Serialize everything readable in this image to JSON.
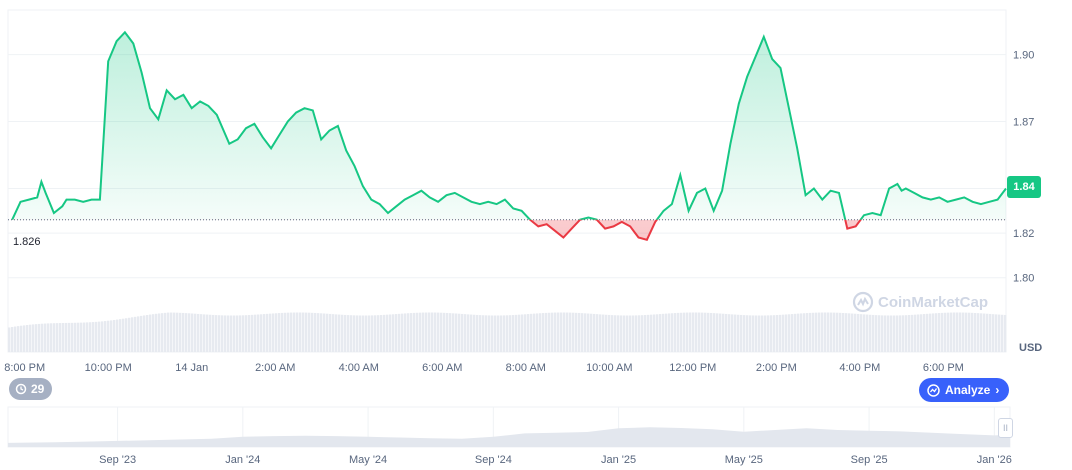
{
  "chart_data": [
    {
      "type": "area",
      "title": "",
      "xlabel": "",
      "ylabel": "USD",
      "ylim": [
        1.79,
        1.92
      ],
      "y_ticks": [
        "1.80",
        "1.82",
        "1.84",
        "1.87",
        "1.90"
      ],
      "y_tick_values": [
        1.8,
        1.82,
        1.84,
        1.87,
        1.9
      ],
      "x_ticks": [
        "8:00 PM",
        "10:00 PM",
        "14 Jan",
        "2:00 AM",
        "4:00 AM",
        "6:00 AM",
        "8:00 AM",
        "10:00 AM",
        "12:00 PM",
        "2:00 PM",
        "4:00 PM",
        "6:00 PM"
      ],
      "x_tick_hours": [
        1,
        3,
        5,
        7,
        9,
        11,
        13,
        15,
        17,
        19,
        21,
        23
      ],
      "x_range_hours": [
        0.6,
        24.5
      ],
      "baseline": 1.826,
      "baseline_label": "1.826",
      "current_price": "1.84",
      "grid": true,
      "colors": {
        "up": "#16c784",
        "down": "#ea3943",
        "grid": "#eff2f5"
      },
      "series": [
        {
          "values_hours": [
            0.7,
            0.9,
            1.1,
            1.3,
            1.4,
            1.5,
            1.7,
            1.9,
            2.0,
            2.2,
            2.4,
            2.6,
            2.8,
            3.0,
            3.2,
            3.4,
            3.6,
            3.8,
            3.9,
            4.0,
            4.2,
            4.4,
            4.6,
            4.8,
            5.0,
            5.2,
            5.4,
            5.6,
            5.9,
            6.1,
            6.3,
            6.5,
            6.7,
            6.9,
            7.1,
            7.3,
            7.5,
            7.7,
            7.9,
            8.1,
            8.3,
            8.5,
            8.7,
            8.9,
            9.1,
            9.3,
            9.5,
            9.7,
            9.9,
            10.1,
            10.3,
            10.5,
            10.7,
            10.9,
            11.1,
            11.3,
            11.5,
            11.7,
            11.9,
            12.1,
            12.3,
            12.5,
            12.7,
            12.9,
            13.1,
            13.3,
            13.5,
            13.7,
            13.9,
            14.1,
            14.3,
            14.5,
            14.7,
            14.9,
            15.1,
            15.3,
            15.5,
            15.7,
            15.9,
            16.1,
            16.3,
            16.5,
            16.7,
            16.9,
            17.1,
            17.3,
            17.5,
            17.7,
            17.9,
            18.1,
            18.3,
            18.5,
            18.7,
            18.9,
            19.1,
            19.3,
            19.5,
            19.7,
            19.9,
            20.1,
            20.3,
            20.5,
            20.7,
            20.9,
            21.1,
            21.3,
            21.5,
            21.7,
            21.8,
            21.9,
            22.0,
            22.1,
            22.3,
            22.5,
            22.7,
            22.9,
            23.1,
            23.3,
            23.5,
            23.7,
            23.9,
            24.1,
            24.3,
            24.5
          ],
          "values": [
            1.826,
            1.834,
            1.835,
            1.836,
            1.843,
            1.838,
            1.829,
            1.832,
            1.835,
            1.835,
            1.834,
            1.835,
            1.835,
            1.897,
            1.906,
            1.91,
            1.905,
            1.892,
            1.884,
            1.876,
            1.871,
            1.884,
            1.88,
            1.882,
            1.876,
            1.879,
            1.877,
            1.873,
            1.86,
            1.862,
            1.867,
            1.869,
            1.863,
            1.858,
            1.864,
            1.87,
            1.874,
            1.876,
            1.875,
            1.862,
            1.866,
            1.868,
            1.857,
            1.85,
            1.841,
            1.835,
            1.833,
            1.829,
            1.832,
            1.835,
            1.837,
            1.839,
            1.836,
            1.834,
            1.837,
            1.838,
            1.836,
            1.834,
            1.833,
            1.834,
            1.833,
            1.835,
            1.831,
            1.83,
            1.826,
            1.823,
            1.824,
            1.821,
            1.818,
            1.822,
            1.826,
            1.827,
            1.826,
            1.822,
            1.823,
            1.825,
            1.823,
            1.818,
            1.817,
            1.825,
            1.83,
            1.833,
            1.846,
            1.83,
            1.838,
            1.84,
            1.83,
            1.839,
            1.86,
            1.878,
            1.89,
            1.899,
            1.908,
            1.898,
            1.894,
            1.876,
            1.858,
            1.837,
            1.84,
            1.835,
            1.839,
            1.838,
            1.822,
            1.823,
            1.828,
            1.829,
            1.828,
            1.84,
            1.841,
            1.842,
            1.839,
            1.84,
            1.838,
            1.836,
            1.835,
            1.836,
            1.834,
            1.835,
            1.836,
            1.834,
            1.833,
            1.834,
            1.835,
            1.84
          ]
        }
      ]
    },
    {
      "type": "area",
      "title": "",
      "xlabel": "",
      "ylabel": "",
      "x_ticks": [
        "Sep '23",
        "Jan '24",
        "May '24",
        "Sep '24",
        "Jan '25",
        "May '25",
        "Sep '25",
        "Jan '26"
      ],
      "x_tick_months": [
        0,
        4,
        8,
        12,
        16,
        20,
        24,
        28
      ],
      "x_range_months": [
        -3.5,
        28.5
      ],
      "ylim": [
        0,
        1
      ],
      "series": [
        {
          "x_months": [
            -3.5,
            -2,
            -1,
            0,
            1,
            2,
            3,
            4,
            5,
            6,
            7,
            8,
            9,
            10,
            11,
            12,
            13,
            14,
            15,
            16,
            17,
            18,
            19,
            20,
            21,
            22,
            23,
            24,
            25,
            26,
            27,
            28,
            28.5
          ],
          "values": [
            0.12,
            0.14,
            0.16,
            0.18,
            0.2,
            0.22,
            0.24,
            0.3,
            0.32,
            0.33,
            0.32,
            0.3,
            0.28,
            0.26,
            0.24,
            0.3,
            0.4,
            0.42,
            0.44,
            0.55,
            0.58,
            0.56,
            0.52,
            0.45,
            0.5,
            0.55,
            0.5,
            0.48,
            0.46,
            0.42,
            0.38,
            0.34,
            0.36
          ]
        }
      ]
    }
  ],
  "ui": {
    "history_count": "29",
    "analyze_label": "Analyze",
    "currency": "USD",
    "watermark": "CoinMarketCap",
    "handle_glyph": "II"
  }
}
